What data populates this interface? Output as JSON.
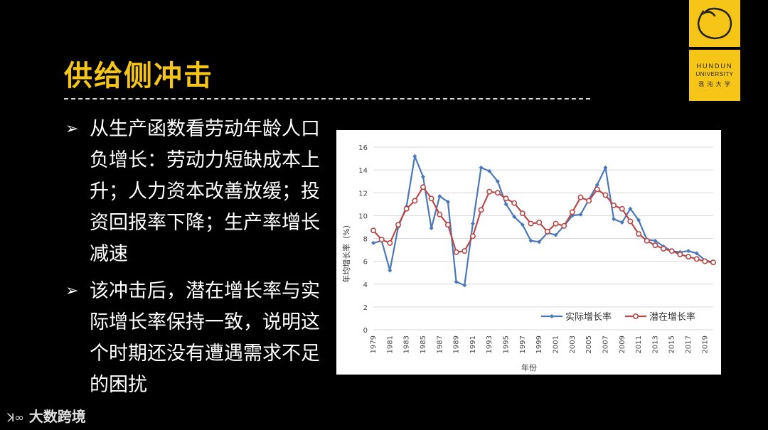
{
  "slide": {
    "title": "供给侧冲击",
    "bullets": [
      "从生产函数看劳动年龄人口负增长：劳动力短缺成本上升；人力资本改善放缓；投资回报率下降；生产率增长减速",
      "该冲击后，潜在增长率与实际增长率保持一致，说明这个时期还没有遭遇需求不足的困扰"
    ],
    "bullet_marker": "➢"
  },
  "logo": {
    "line1": "HUNDUN",
    "line2": "UNIVERSITY",
    "line3": "混 沌 大 学"
  },
  "footer": {
    "text": "大数跨境"
  },
  "colors": {
    "accent": "#f5c518",
    "series_actual": "#4a78b8",
    "series_potential": "#b84a4a"
  },
  "chart_data": {
    "type": "line",
    "xlabel": "年份",
    "ylabel": "年均增长率（%）",
    "ylim": [
      0,
      16
    ],
    "yticks": [
      0,
      2,
      4,
      6,
      8,
      10,
      12,
      14,
      16
    ],
    "x": [
      1979,
      1980,
      1981,
      1982,
      1983,
      1984,
      1985,
      1986,
      1987,
      1988,
      1989,
      1990,
      1991,
      1992,
      1993,
      1994,
      1995,
      1996,
      1997,
      1998,
      1999,
      2000,
      2001,
      2002,
      2003,
      2004,
      2005,
      2006,
      2007,
      2008,
      2009,
      2010,
      2011,
      2012,
      2013,
      2014,
      2015,
      2016,
      2017,
      2018,
      2019,
      2020
    ],
    "xtick_labels": [
      "1979",
      "1981",
      "1983",
      "1985",
      "1987",
      "1989",
      "1991",
      "1993",
      "1995",
      "1997",
      "1999",
      "2001",
      "2003",
      "2005",
      "2007",
      "2009",
      "2011",
      "2013",
      "2015",
      "2017",
      "2019"
    ],
    "series": [
      {
        "name": "实际增长率",
        "values": [
          7.6,
          7.8,
          5.2,
          9.0,
          10.8,
          15.2,
          13.4,
          8.9,
          11.7,
          11.2,
          4.2,
          3.9,
          9.3,
          14.2,
          13.9,
          13.0,
          11.0,
          9.9,
          9.2,
          7.8,
          7.7,
          8.5,
          8.3,
          9.1,
          10.0,
          10.1,
          11.4,
          12.7,
          14.2,
          9.7,
          9.4,
          10.6,
          9.6,
          7.9,
          7.8,
          7.3,
          6.9,
          6.8,
          6.9,
          6.7,
          6.1,
          5.9
        ]
      },
      {
        "name": "潜在增长率",
        "values": [
          8.7,
          7.9,
          7.6,
          9.2,
          10.6,
          11.3,
          12.5,
          11.5,
          10.1,
          9.2,
          6.8,
          6.9,
          8.2,
          10.5,
          12.1,
          12.0,
          11.5,
          11.1,
          10.2,
          9.3,
          9.4,
          8.6,
          9.3,
          9.1,
          10.3,
          11.6,
          11.3,
          12.3,
          11.8,
          10.9,
          10.6,
          9.5,
          8.4,
          7.8,
          7.4,
          7.1,
          6.9,
          6.6,
          6.4,
          6.2,
          6.0,
          5.9
        ]
      }
    ]
  }
}
